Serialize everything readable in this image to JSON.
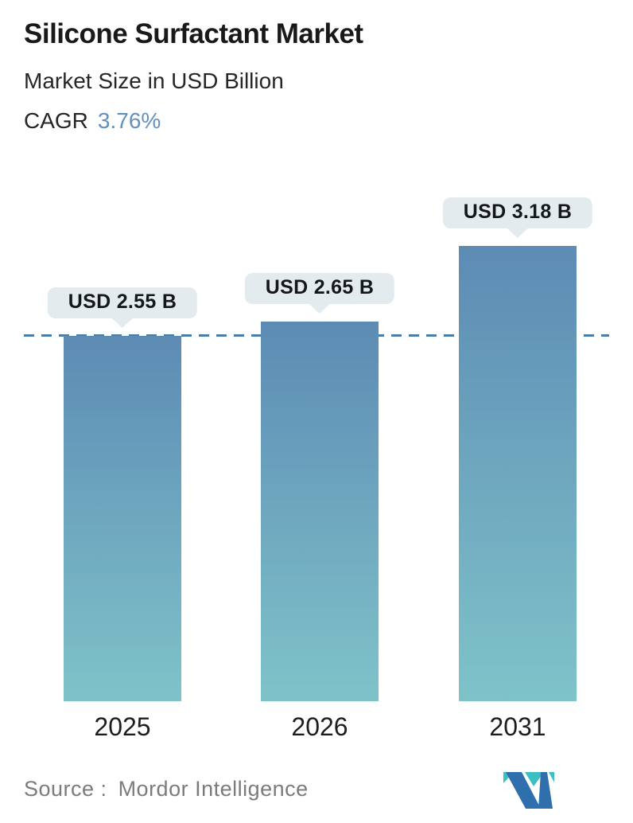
{
  "header": {
    "title": "Silicone Surfactant Market",
    "subtitle": "Market Size in USD Billion",
    "cagr_label": "CAGR",
    "cagr_value": "3.76%"
  },
  "chart_data": {
    "type": "bar",
    "title": "Silicone Surfactant Market",
    "subtitle": "Market Size in USD Billion",
    "cagr_percent": 3.76,
    "categories": [
      "2025",
      "2026",
      "2031"
    ],
    "values": [
      2.55,
      2.65,
      3.18
    ],
    "bar_labels": [
      "USD 2.55 B",
      "USD 2.65 B",
      "USD 3.18 B"
    ],
    "unit": "USD Billion",
    "ylim": [
      0,
      3.67
    ],
    "grid": false,
    "legend": "none",
    "reference_line": {
      "value": 2.55,
      "style": "dashed"
    }
  },
  "footer": {
    "source_label": "Source :",
    "source_value": "Mordor Intelligence",
    "logo": "mordor-intelligence-logo"
  },
  "colors": {
    "accent_blue": "#6090c0",
    "bar_gradient_top": "#5d8bb4",
    "bar_gradient_bottom": "#7fc3c9",
    "dashed_line": "#4b7da7",
    "label_pill_bg": "#e4ebee",
    "text_dark": "#191919",
    "text_gray": "#7b7b7b",
    "logo_blue": "#2f6fad",
    "logo_teal": "#3cbfc4"
  }
}
